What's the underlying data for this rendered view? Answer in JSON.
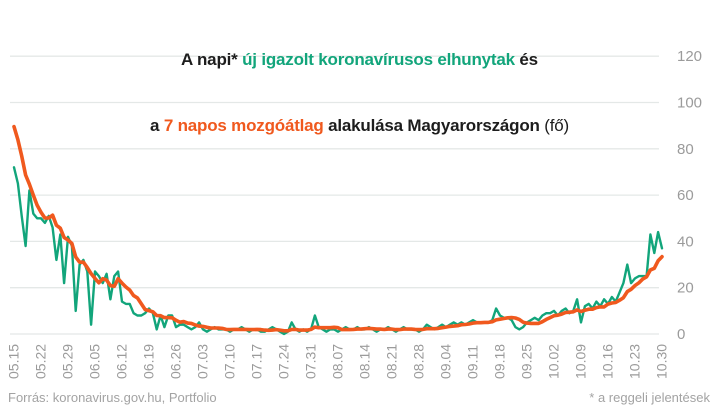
{
  "title": {
    "line1_parts": [
      {
        "text": "A napi* ",
        "role": "dark"
      },
      {
        "text": "új igazolt koronavírusos elhunytak",
        "role": "green"
      },
      {
        "text": " és",
        "role": "dark"
      }
    ],
    "line2_parts": [
      {
        "text": "a ",
        "role": "dark"
      },
      {
        "text": "7 napos mozgóátlag",
        "role": "orange"
      },
      {
        "text": " alakulása Magyarországon ",
        "role": "dark"
      },
      {
        "text": "(fő)",
        "role": "dark-regular"
      }
    ]
  },
  "footer": {
    "source": "Forrás: koronavirus.gov.hu, Portfolio",
    "note": "* a reggeli jelentések"
  },
  "colors": {
    "green_series": "#12a57b",
    "orange_series": "#f0591e",
    "grid": "#e4e8e7",
    "axis_text": "#9b9b9b",
    "title_text": "#1d1d1d",
    "footer_text": "#a3a3a3"
  },
  "chart_data": {
    "type": "line",
    "title": "A napi* új igazolt koronavírusos elhunytak és a 7 napos mozgóátlag alakulása Magyarországon (fő)",
    "x_unit": "day",
    "x_start": "05.15",
    "x_end": "10.30",
    "x_tick_step_days": 7,
    "x_tick_labels": [
      "05.15",
      "05.22",
      "05.29",
      "06.05",
      "06.12",
      "06.19",
      "06.26",
      "07.03",
      "07.10",
      "07.17",
      "07.24",
      "07.31",
      "08.07",
      "08.14",
      "08.21",
      "08.28",
      "09.04",
      "09.11",
      "09.18",
      "09.25",
      "10.02",
      "10.09",
      "10.16",
      "10.23",
      "10.30"
    ],
    "y_ticks": [
      0,
      20,
      40,
      60,
      80,
      100,
      120
    ],
    "ylim": [
      0,
      120
    ],
    "y_axis_side": "right",
    "grid": "horizontal",
    "legend": "encoded-in-title-colors",
    "series": [
      {
        "name": "új igazolt koronavírusos elhunytak (napi)",
        "color": "#12a57b",
        "values": [
          72,
          65,
          51,
          38,
          62,
          52,
          50,
          50,
          48,
          51,
          46,
          32,
          43,
          22,
          42,
          38,
          10,
          30,
          32,
          27,
          4,
          27,
          25,
          22,
          26,
          15,
          25,
          27,
          14,
          13,
          13,
          9,
          8,
          8,
          9,
          11,
          9,
          2,
          8,
          3,
          8,
          8,
          3,
          4,
          4,
          3,
          2,
          3,
          5,
          2,
          1,
          2,
          3,
          2,
          2,
          2,
          1,
          2,
          2,
          3,
          2,
          1,
          2,
          2,
          1,
          1,
          2,
          3,
          2,
          1,
          0,
          1,
          5,
          2,
          1,
          2,
          1,
          2,
          8,
          3,
          2,
          1,
          2,
          2,
          1,
          2,
          3,
          2,
          2,
          3,
          2,
          2,
          3,
          2,
          1,
          2,
          2,
          3,
          2,
          1,
          2,
          3,
          2,
          2,
          2,
          1,
          2,
          4,
          3,
          2,
          3,
          4,
          3,
          4,
          5,
          4,
          5,
          4,
          5,
          6,
          5,
          5,
          5,
          5,
          6,
          11,
          8,
          7,
          7,
          6,
          3,
          2,
          3,
          5,
          6,
          7,
          6,
          8,
          9,
          9,
          10,
          8,
          10,
          11,
          9,
          10,
          15,
          5,
          12,
          13,
          11,
          14,
          12,
          15,
          13,
          16,
          14,
          18,
          22,
          30,
          22,
          24,
          25,
          25,
          25,
          43,
          35,
          44,
          37
        ]
      },
      {
        "name": "7 napos mozgóátlag",
        "color": "#f0591e",
        "values": [
          89.6,
          83.9,
          76.9,
          68.7,
          64.7,
          60,
          55.7,
          52.6,
          50.1,
          50.1,
          51.3,
          47,
          45.7,
          41.7,
          40.6,
          39.1,
          33.3,
          31,
          31,
          28.7,
          26.1,
          24,
          22.1,
          23.9,
          23.3,
          20.9,
          20.6,
          23.9,
          22,
          20.3,
          19,
          16.6,
          15.6,
          13.1,
          10.6,
          10.1,
          9.6,
          8,
          7.9,
          7.1,
          7.1,
          7,
          5.9,
          5.1,
          5.4,
          4.7,
          4.6,
          3.9,
          3.4,
          3.3,
          2.9,
          2.6,
          2.6,
          2.6,
          2.4,
          2,
          1.9,
          2,
          2,
          2,
          2,
          1.9,
          1.9,
          2,
          1.9,
          1.7,
          1.6,
          1.7,
          1.9,
          1.7,
          1.4,
          1.4,
          2,
          2,
          1.7,
          1.7,
          1.7,
          2,
          3,
          2.7,
          2.7,
          2.7,
          2.7,
          2.9,
          2.7,
          1.9,
          1.9,
          1.9,
          2,
          2.1,
          2.1,
          2.3,
          2.4,
          2.3,
          2.1,
          2.1,
          2,
          2.1,
          2.1,
          1.9,
          1.9,
          2.1,
          2.1,
          2.1,
          2,
          1.9,
          2,
          2.3,
          2.3,
          2.3,
          2.4,
          2.7,
          3,
          3.3,
          3.4,
          3.6,
          4,
          4.1,
          4.3,
          4.7,
          4.9,
          4.9,
          5,
          5,
          5.3,
          6.1,
          6.4,
          6.7,
          7,
          7.1,
          6.9,
          6.3,
          5.1,
          4.7,
          4.6,
          4.6,
          4.6,
          5.3,
          6.3,
          7.1,
          7.9,
          8.1,
          8.6,
          9.3,
          9.4,
          9.6,
          10.4,
          9.7,
          10.3,
          10.7,
          10.7,
          11.4,
          11.7,
          11.7,
          12.9,
          13.4,
          13.6,
          14.6,
          15.7,
          18.3,
          19.3,
          20.9,
          22.1,
          23.7,
          24.7,
          27.7,
          28.4,
          31.6,
          33.4
        ]
      }
    ]
  }
}
